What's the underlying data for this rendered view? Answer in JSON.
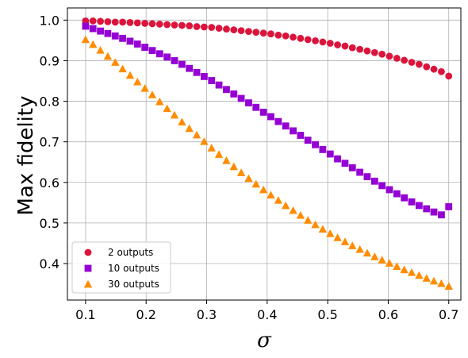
{
  "chart_data": {
    "type": "scatter",
    "xlabel": "σ",
    "ylabel": "Max fidelity",
    "xlim": [
      0.07,
      0.72
    ],
    "ylim": [
      0.31,
      1.03
    ],
    "xticks": [
      "0.1",
      "0.2",
      "0.3",
      "0.4",
      "0.5",
      "0.6",
      "0.7"
    ],
    "yticks": [
      "0.4",
      "0.5",
      "0.6",
      "0.7",
      "0.8",
      "0.9",
      "1.0"
    ],
    "grid": true,
    "legend_position": "lower-left",
    "x": [
      0.1,
      0.1122,
      0.1245,
      0.1367,
      0.149,
      0.1612,
      0.1735,
      0.1857,
      0.198,
      0.2102,
      0.2224,
      0.2347,
      0.2469,
      0.2592,
      0.2714,
      0.2837,
      0.2959,
      0.3082,
      0.3204,
      0.3327,
      0.3449,
      0.3571,
      0.3694,
      0.3816,
      0.3939,
      0.4061,
      0.4184,
      0.4306,
      0.4429,
      0.4551,
      0.4673,
      0.4796,
      0.4918,
      0.5041,
      0.5163,
      0.5286,
      0.5408,
      0.5531,
      0.5653,
      0.5776,
      0.5898,
      0.602,
      0.6143,
      0.6265,
      0.6388,
      0.651,
      0.6633,
      0.6755,
      0.6878,
      0.7
    ],
    "series": [
      {
        "name": "2 outputs",
        "marker": "circle",
        "color": "#dc143c",
        "values": [
          0.998,
          0.998,
          0.997,
          0.996,
          0.995,
          0.995,
          0.994,
          0.993,
          0.992,
          0.991,
          0.99,
          0.989,
          0.988,
          0.987,
          0.986,
          0.984,
          0.983,
          0.982,
          0.98,
          0.978,
          0.976,
          0.974,
          0.972,
          0.97,
          0.968,
          0.966,
          0.963,
          0.961,
          0.958,
          0.955,
          0.952,
          0.949,
          0.946,
          0.943,
          0.939,
          0.936,
          0.932,
          0.928,
          0.924,
          0.92,
          0.916,
          0.911,
          0.906,
          0.901,
          0.896,
          0.891,
          0.885,
          0.879,
          0.873,
          0.862
        ]
      },
      {
        "name": "10 outputs",
        "marker": "square",
        "color": "#9400d3",
        "values": [
          0.985,
          0.979,
          0.973,
          0.967,
          0.961,
          0.955,
          0.948,
          0.941,
          0.933,
          0.925,
          0.917,
          0.909,
          0.9,
          0.891,
          0.881,
          0.871,
          0.861,
          0.851,
          0.84,
          0.829,
          0.818,
          0.807,
          0.796,
          0.785,
          0.773,
          0.762,
          0.75,
          0.739,
          0.727,
          0.716,
          0.704,
          0.693,
          0.681,
          0.67,
          0.658,
          0.647,
          0.636,
          0.625,
          0.614,
          0.603,
          0.592,
          0.582,
          0.572,
          0.562,
          0.552,
          0.543,
          0.535,
          0.527,
          0.52,
          0.54
        ]
      },
      {
        "name": "30 outputs",
        "marker": "triangle",
        "color": "#ff8c00",
        "values": [
          0.952,
          0.94,
          0.926,
          0.911,
          0.896,
          0.88,
          0.864,
          0.848,
          0.832,
          0.816,
          0.799,
          0.782,
          0.766,
          0.749,
          0.733,
          0.717,
          0.701,
          0.685,
          0.669,
          0.654,
          0.639,
          0.624,
          0.61,
          0.596,
          0.582,
          0.569,
          0.556,
          0.543,
          0.531,
          0.519,
          0.507,
          0.496,
          0.485,
          0.474,
          0.464,
          0.454,
          0.444,
          0.435,
          0.426,
          0.417,
          0.409,
          0.401,
          0.393,
          0.385,
          0.378,
          0.371,
          0.364,
          0.357,
          0.351,
          0.344
        ]
      }
    ]
  }
}
